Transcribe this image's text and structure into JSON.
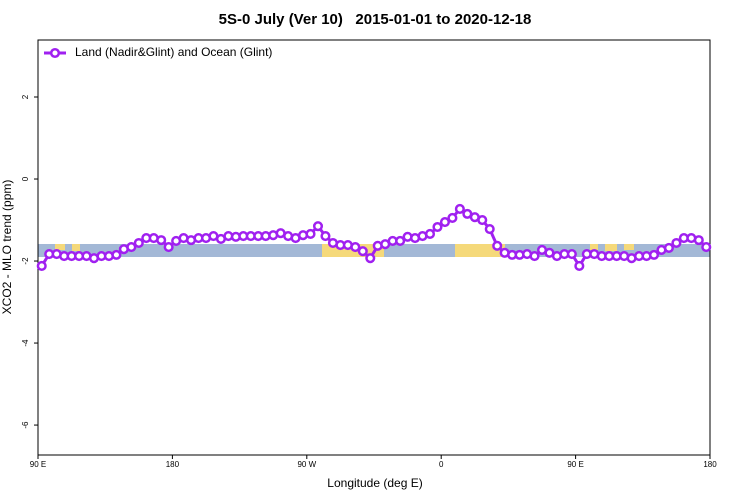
{
  "chart_data": {
    "type": "line",
    "title": "5S-0 July (Ver 10)   2015-01-01 to 2020-12-18",
    "x_label": "Longitude (deg E)",
    "y_label": "XCO2 - MLO trend (ppm)",
    "xlim": [
      90,
      540
    ],
    "ylim": [
      -6.73,
      3.39
    ],
    "xticks": [
      {
        "value": 90,
        "label": "90 E"
      },
      180,
      {
        "value": 270,
        "label": "90 W"
      },
      {
        "value": 360,
        "label": "0"
      },
      {
        "value": 450,
        "label": "90 E"
      },
      {
        "value": 540,
        "label": "180"
      }
    ],
    "yticks": [
      2,
      0,
      -2,
      -4,
      -6
    ],
    "legend": "top-left",
    "x": [
      92.5,
      97.5,
      102.5,
      107.5,
      112.5,
      117.5,
      122.5,
      127.5,
      132.5,
      137.5,
      142.5,
      147.5,
      152.5,
      157.5,
      162.5,
      167.5,
      172.5,
      177.5,
      182.5,
      187.5,
      192.5,
      197.5,
      202.5,
      207.5,
      212.5,
      217.5,
      222.5,
      227.5,
      232.5,
      237.5,
      242.5,
      247.5,
      252.5,
      257.5,
      262.5,
      267.5,
      272.5,
      277.5,
      282.5,
      287.5,
      292.5,
      297.5,
      302.5,
      307.5,
      312.5,
      317.5,
      322.5,
      327.5,
      332.5,
      337.5,
      342.5,
      347.5,
      352.5,
      357.5,
      362.5,
      367.5,
      372.5,
      377.5,
      382.5,
      387.5,
      392.5,
      397.5,
      402.5,
      407.5,
      412.5,
      417.5,
      422.5,
      427.5,
      432.5,
      437.5,
      442.5,
      447.5,
      452.5,
      457.5,
      462.5,
      467.5,
      472.5,
      477.5,
      482.5,
      487.5,
      492.5,
      497.5,
      502.5,
      507.5,
      512.5,
      517.5,
      522.5,
      527.5,
      532.5,
      537.5
    ],
    "series": [
      {
        "name": "Land (Nadir&Glint) and Ocean (Glint)",
        "color": "#a020f0",
        "values": [
          -2.12,
          -1.83,
          -1.83,
          -1.88,
          -1.88,
          -1.88,
          -1.88,
          -1.93,
          -1.88,
          -1.88,
          -1.85,
          -1.71,
          -1.66,
          -1.56,
          -1.44,
          -1.44,
          -1.49,
          -1.66,
          -1.51,
          -1.44,
          -1.49,
          -1.44,
          -1.44,
          -1.39,
          -1.46,
          -1.39,
          -1.41,
          -1.39,
          -1.39,
          -1.39,
          -1.39,
          -1.37,
          -1.32,
          -1.39,
          -1.44,
          -1.37,
          -1.34,
          -1.15,
          -1.39,
          -1.56,
          -1.61,
          -1.61,
          -1.66,
          -1.76,
          -1.93,
          -1.63,
          -1.59,
          -1.51,
          -1.51,
          -1.41,
          -1.44,
          -1.39,
          -1.34,
          -1.17,
          -1.05,
          -0.95,
          -0.73,
          -0.85,
          -0.93,
          -1.0,
          -1.22,
          -1.63,
          -1.8,
          -1.85,
          -1.85,
          -1.83,
          -1.88,
          -1.73,
          -1.8,
          -1.88,
          -1.83,
          -1.83,
          -2.12,
          -1.83,
          -1.83,
          -1.88,
          -1.88,
          -1.88,
          -1.88,
          -1.93,
          -1.88,
          -1.88,
          -1.85,
          -1.73,
          -1.68,
          -1.56,
          -1.44,
          -1.44,
          -1.49,
          -1.66
        ]
      }
    ]
  }
}
